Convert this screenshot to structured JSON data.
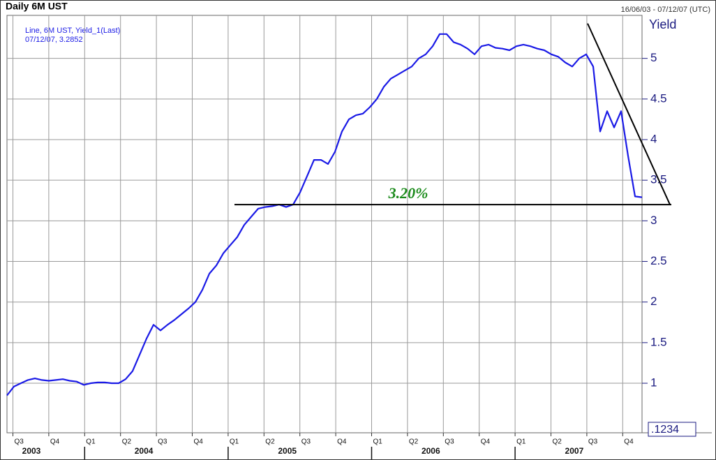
{
  "chart_data": {
    "type": "line",
    "title": "Daily 6M UST",
    "date_range": "16/06/03 - 07/12/07 (UTC)",
    "legend_lines": [
      "Line, 6M UST, Yield_1(Last)",
      "07/12/07, 3.2852"
    ],
    "y_axis_label": "Yield",
    "corner_label": ".1234",
    "quarters": [
      "Q3",
      "Q4",
      "Q1",
      "Q2",
      "Q3",
      "Q4",
      "Q1",
      "Q2",
      "Q3",
      "Q4",
      "Q1",
      "Q2",
      "Q3",
      "Q4",
      "Q1",
      "Q2",
      "Q3",
      "Q4"
    ],
    "years": [
      "2003",
      "2004",
      "2005",
      "2006",
      "2007"
    ],
    "color": "#1a1ae6",
    "grid": true,
    "ylim": [
      0.39,
      5.53
    ],
    "yticks": [
      1,
      1.5,
      2,
      2.5,
      3,
      3.5,
      4,
      4.5,
      5
    ],
    "values": [
      0.85,
      0.96,
      1.0,
      1.04,
      1.06,
      1.04,
      1.03,
      1.04,
      1.05,
      1.03,
      1.02,
      0.98,
      1.0,
      1.01,
      1.01,
      1.0,
      1.0,
      1.05,
      1.15,
      1.35,
      1.55,
      1.72,
      1.65,
      1.72,
      1.78,
      1.85,
      1.92,
      2.0,
      2.15,
      2.35,
      2.45,
      2.6,
      2.7,
      2.8,
      2.95,
      3.05,
      3.15,
      3.17,
      3.18,
      3.2,
      3.17,
      3.2,
      3.35,
      3.55,
      3.75,
      3.75,
      3.7,
      3.85,
      4.1,
      4.25,
      4.3,
      4.32,
      4.4,
      4.5,
      4.65,
      4.75,
      4.8,
      4.85,
      4.9,
      5.0,
      5.05,
      5.15,
      5.3,
      5.3,
      5.2,
      5.17,
      5.12,
      5.05,
      5.15,
      5.17,
      5.13,
      5.12,
      5.1,
      5.15,
      5.17,
      5.15,
      5.12,
      5.1,
      5.05,
      5.02,
      4.95,
      4.9,
      5.0,
      5.05,
      4.9,
      4.1,
      4.35,
      4.15,
      4.35,
      3.8,
      3.3,
      3.29
    ],
    "support": {
      "text": "3.20%",
      "value": 3.2,
      "color": "#1a8a1a"
    },
    "trendline": [
      5.43,
      3.2
    ]
  }
}
